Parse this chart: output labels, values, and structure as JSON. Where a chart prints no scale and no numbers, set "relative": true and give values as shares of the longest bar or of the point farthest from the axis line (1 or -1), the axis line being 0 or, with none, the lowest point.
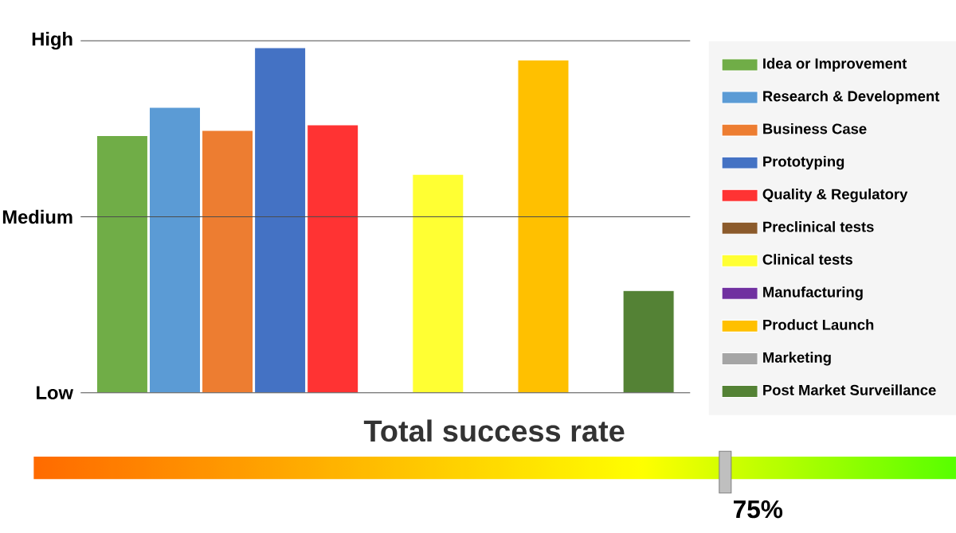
{
  "chart_data": [
    {
      "type": "bar",
      "relative": true,
      "categories": [
        null
      ],
      "series": [
        {
          "name": "Idea or Improvement",
          "color": "#70ad47",
          "values": [
            0.745
          ]
        },
        {
          "name": "Research & Development",
          "color": "#5b9bd5",
          "values": [
            0.827
          ]
        },
        {
          "name": "Business Case",
          "color": "#ed7d31",
          "values": [
            0.76
          ]
        },
        {
          "name": "Prototyping",
          "color": "#4472c4",
          "values": [
            1
          ]
        },
        {
          "name": "Quality & Regulatory",
          "color": "#ff3333",
          "values": [
            0.776
          ]
        },
        {
          "name": "Preclinical tests",
          "color": "#8b5a2b",
          "values": [
            0
          ]
        },
        {
          "name": "Clinical tests",
          "color": "#ffff33",
          "values": [
            0.633
          ]
        },
        {
          "name": "Manufacturing",
          "color": "#7030a0",
          "values": [
            0
          ]
        },
        {
          "name": "Product Launch",
          "color": "#ffc000",
          "values": [
            0.964
          ]
        },
        {
          "name": "Marketing",
          "color": "#a5a5a5",
          "values": [
            0
          ]
        },
        {
          "name": "Post Market Surveillance",
          "color": "#548235",
          "values": [
            0.296
          ]
        }
      ],
      "ref_lines": [
        {
          "axis": "y",
          "value": 0,
          "label": "Low"
        },
        {
          "axis": "y",
          "value": 0.51,
          "label": "Medium"
        },
        {
          "axis": "y",
          "value": 1.02,
          "label": "High"
        }
      ],
      "legend": "right"
    },
    {
      "type": "other",
      "title": "Total success rate",
      "values": [
        75
      ],
      "value_labels": [
        "75%"
      ]
    }
  ]
}
